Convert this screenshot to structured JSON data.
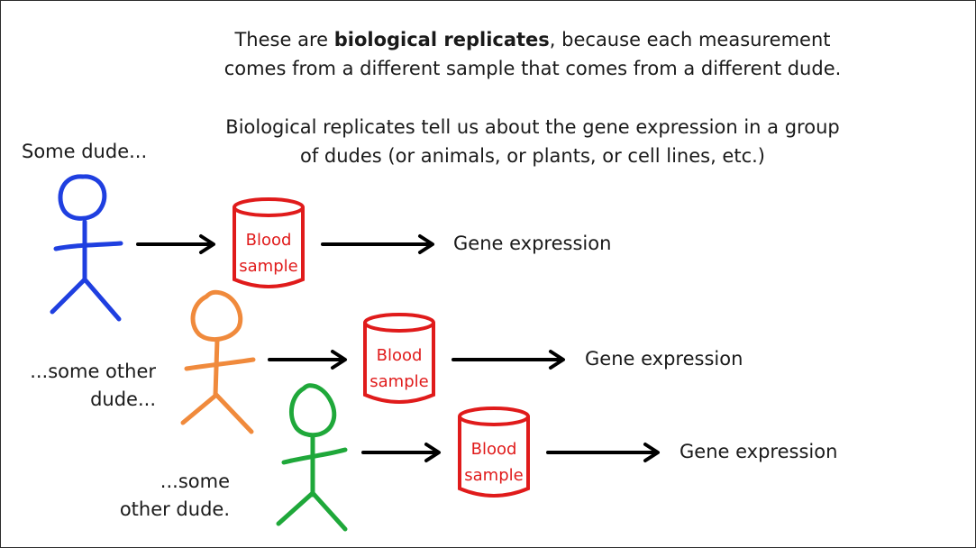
{
  "captions": {
    "line1_prefix": "These are ",
    "line1_bold": "biological replicates",
    "line1_suffix": ", because each measurement",
    "line2": "comes from a different sample that comes from a different dude.",
    "line3": "Biological replicates tell us about the gene expression in a group",
    "line4": "of dudes (or animals, or plants, or cell lines, etc.)"
  },
  "people": [
    {
      "label_lines": [
        "Some dude..."
      ],
      "color": "#1f3fe0"
    },
    {
      "label_lines": [
        "...some other",
        "dude..."
      ],
      "color": "#f08a3c"
    },
    {
      "label_lines": [
        "...some",
        "other dude."
      ],
      "color": "#1fa83a"
    }
  ],
  "sample": {
    "line1": "Blood",
    "line2": "sample",
    "color": "#e01b1b"
  },
  "outcome": {
    "label": "Gene expression"
  },
  "colors": {
    "arrow": "#000000",
    "text": "#1a1a1a"
  }
}
